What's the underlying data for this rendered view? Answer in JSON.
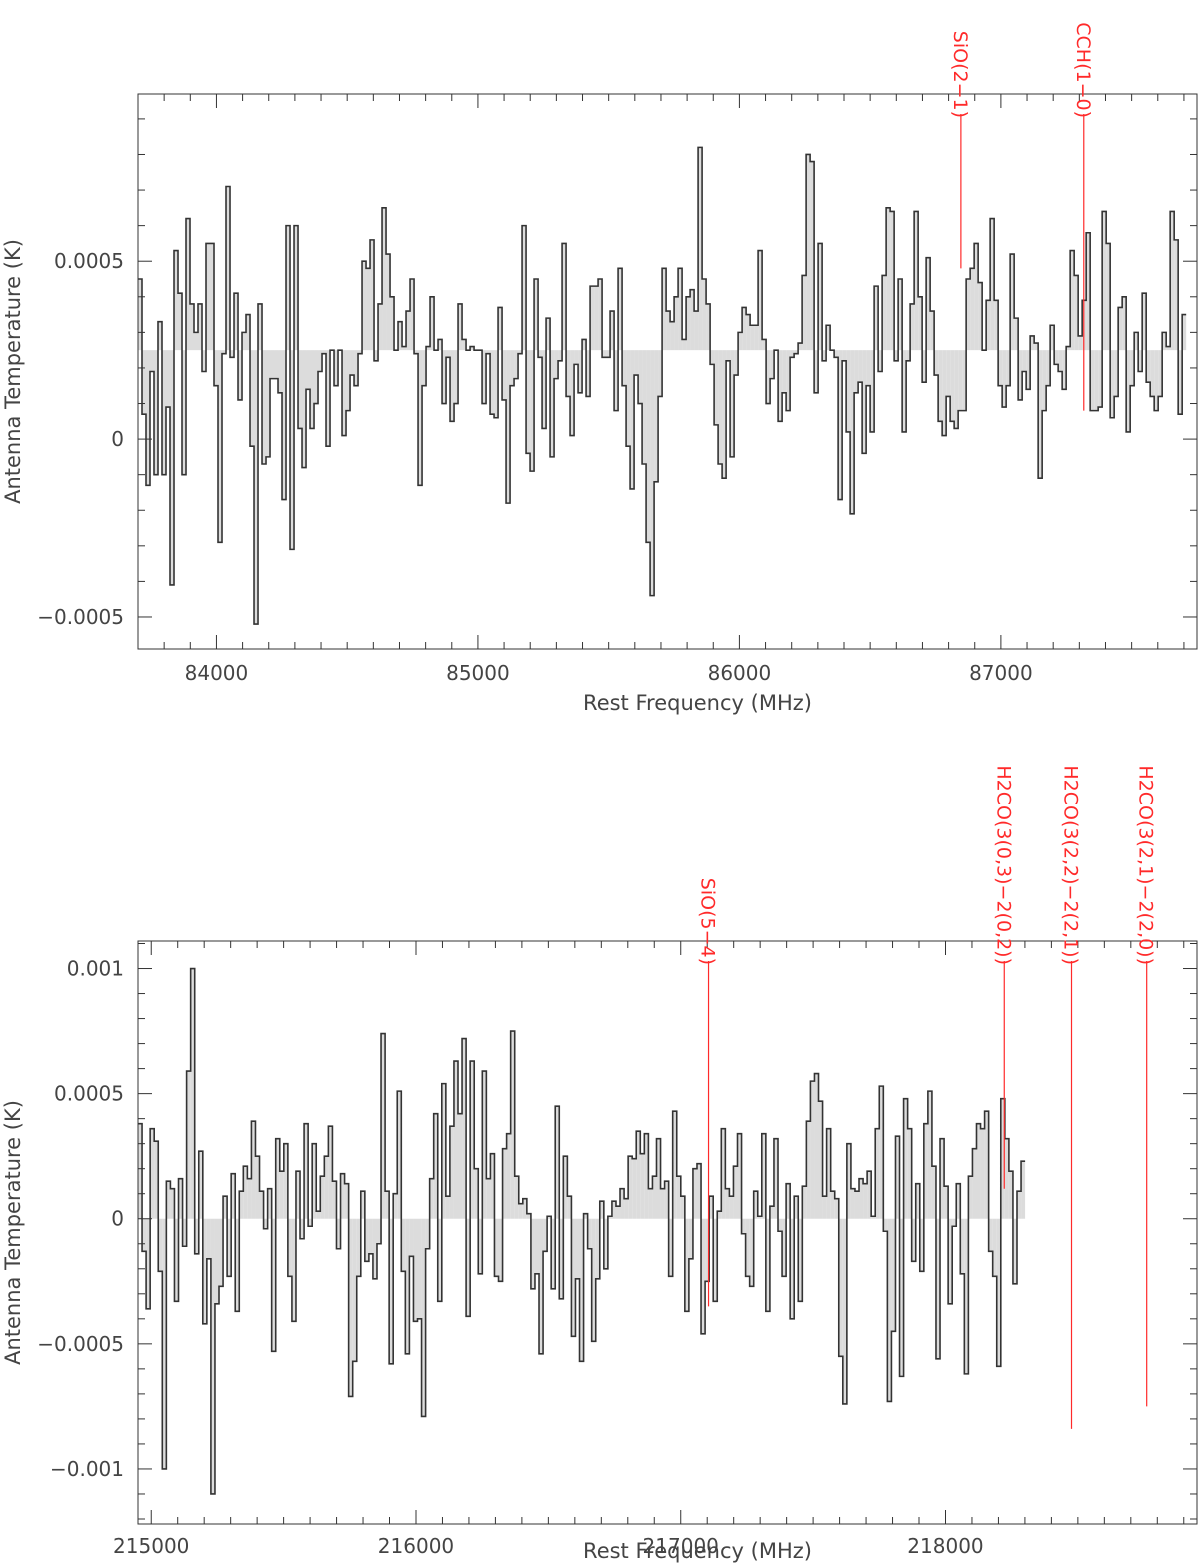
{
  "chart_data": [
    {
      "type": "step",
      "xlabel": "Rest Frequency (MHz)",
      "ylabel": "Antenna Temperature (K)",
      "xlim": [
        83700,
        87750
      ],
      "ylim": [
        -0.00059,
        0.00097
      ],
      "baseline": 0.00025,
      "x_ticks": [
        84000,
        85000,
        86000,
        87000
      ],
      "x_tick_labels": [
        "84000",
        "85000",
        "86000",
        "87000"
      ],
      "y_ticks": [
        -0.0005,
        0,
        0.0005
      ],
      "y_tick_labels": [
        "−0.0005",
        "0",
        "0.0005"
      ],
      "line_markers": [
        {
          "label": "SiO(2−1)",
          "freq": 86847,
          "level": 0.00048
        },
        {
          "label": "CCH(1−0)",
          "freq": 87317,
          "level": 8e-05
        }
      ],
      "x0": 83700,
      "dx": 15.3,
      "values": [
        0.00045,
        7e-05,
        -0.00013,
        0.00019,
        -0.0001,
        0.00033,
        -0.0001,
        9e-05,
        -0.00041,
        0.00053,
        0.00041,
        -0.0001,
        0.00062,
        0.00038,
        0.0003,
        0.00038,
        0.00019,
        0.00055,
        0.00055,
        0.00015,
        -0.00029,
        0.00024,
        0.00071,
        0.00023,
        0.00041,
        0.00011,
        0.0003,
        0.00035,
        -2e-05,
        -0.00052,
        0.00038,
        -7e-05,
        -5e-05,
        0.00017,
        0.00017,
        0.00013,
        -0.00017,
        0.0006,
        -0.00031,
        0.0006,
        3e-05,
        -8e-05,
        0.00014,
        3e-05,
        0.0001,
        0.00019,
        0.00024,
        -2e-05,
        0.00025,
        0.00015,
        0.00025,
        1e-05,
        8e-05,
        0.00018,
        0.00015,
        0.00024,
        0.0005,
        0.00048,
        0.00056,
        0.00022,
        0.00038,
        0.00065,
        0.00052,
        0.0004,
        0.00025,
        0.00033,
        0.00026,
        0.00036,
        0.00045,
        0.00024,
        -0.00013,
        0.00015,
        0.00026,
        0.0004,
        0.00025,
        0.00028,
        0.0001,
        0.00023,
        5e-05,
        0.0001,
        0.00038,
        0.00028,
        0.00025,
        0.00026,
        0.00025,
        0.00025,
        0.0001,
        0.00024,
        7e-05,
        6e-05,
        0.00037,
        0.00011,
        -0.00018,
        0.00015,
        0.00017,
        0.00024,
        0.0006,
        -4e-05,
        -9e-05,
        0.00045,
        0.00023,
        3e-05,
        0.00034,
        -5e-05,
        0.00017,
        0.00022,
        0.00055,
        0.00012,
        1e-05,
        0.00021,
        0.00013,
        0.00028,
        0.00012,
        0.00043,
        0.00043,
        0.00045,
        0.00023,
        0.00023,
        0.00036,
        8e-05,
        0.00048,
        0.00015,
        -2e-05,
        -0.00014,
        0.00018,
        0.0001,
        -7e-05,
        -0.00029,
        -0.00044,
        -0.00012,
        0.00012,
        0.00048,
        0.00036,
        0.00033,
        0.0004,
        0.00048,
        0.00028,
        0.0004,
        0.00042,
        0.00036,
        0.00082,
        0.00045,
        0.00038,
        0.00021,
        4e-05,
        -7e-05,
        -0.00011,
        0.00022,
        -5e-05,
        0.00018,
        0.0003,
        0.00037,
        0.00035,
        0.00032,
        0.00032,
        0.00053,
        0.00028,
        0.0001,
        0.00017,
        0.00025,
        5e-05,
        0.00013,
        8e-05,
        0.00023,
        0.00024,
        0.00027,
        0.00046,
        0.0008,
        0.00078,
        0.00013,
        0.00055,
        0.00022,
        0.00032,
        0.00025,
        0.00023,
        -0.00017,
        0.00022,
        2e-05,
        -0.00021,
        0.00013,
        0.00016,
        -4e-05,
        0.00015,
        2e-05,
        0.00043,
        0.00019,
        0.00046,
        0.00065,
        0.00064,
        0.00022,
        0.00045,
        2e-05,
        0.00022,
        0.00038,
        0.00064,
        0.0004,
        0.00016,
        0.00051,
        0.00036,
        0.00018,
        5e-05,
        1e-05,
        0.00012,
        5e-05,
        3e-05,
        8e-05,
        8e-05,
        0.00045,
        0.00048,
        0.00055,
        0.00044,
        0.00025,
        0.00039,
        0.00062,
        0.00039,
        0.00015,
        9e-05,
        0.00015,
        0.00052,
        0.00034,
        0.00011,
        0.00019,
        0.00014,
        0.00029,
        0.00027,
        -0.00011,
        8e-05,
        0.00015,
        0.00032,
        0.00021,
        0.00019,
        0.00014,
        0.00026,
        0.00053,
        0.00046,
        0.00029,
        0.00039,
        0.00058,
        8e-05,
        8e-05,
        9e-05,
        0.00064,
        0.00055,
        6e-05,
        0.00012,
        0.00037,
        0.0004,
        2e-05,
        0.00015,
        0.0003,
        0.00019,
        0.00041,
        0.00016,
        0.00012,
        8e-05,
        0.00012,
        0.0003,
        0.00026,
        0.00064,
        0.00056,
        7e-05,
        0.00035
      ]
    },
    {
      "type": "step",
      "xlabel": "Rest Frequency (MHz)",
      "ylabel": "Antenna Temperature (K)",
      "xlim": [
        214950,
        218950
      ],
      "ylim": [
        -0.00122,
        0.00111
      ],
      "baseline": 0.0,
      "x_ticks": [
        215000,
        216000,
        217000,
        218000
      ],
      "x_tick_labels": [
        "215000",
        "216000",
        "217000",
        "218000"
      ],
      "y_ticks": [
        -0.001,
        -0.0005,
        0,
        0.0005,
        0.001
      ],
      "y_tick_labels": [
        "−0.001",
        "−0.0005",
        "0",
        "0.0005",
        "0.001"
      ],
      "line_markers": [
        {
          "label": "SiO(5−4)",
          "freq": 217105,
          "level": -0.00035
        },
        {
          "label": "H2CO(3(0,3)−2(0,2))",
          "freq": 218222,
          "level": 0.00012
        },
        {
          "label": "H2CO(3(2,2)−2(2,1))",
          "freq": 218476,
          "level": -0.00084
        },
        {
          "label": "H2CO(3(2,1)−2(2,0))",
          "freq": 218760,
          "level": -0.00075
        }
      ],
      "x0": 214950,
      "dx": 15.3,
      "values": [
        0.00038,
        -0.00013,
        -0.00036,
        0.00036,
        0.00031,
        -0.00021,
        -0.001,
        0.00015,
        0.00012,
        -0.00033,
        0.00016,
        -0.00011,
        0.00059,
        0.001,
        -0.00014,
        0.00027,
        -0.00042,
        -0.00016,
        -0.0011,
        -0.00034,
        -0.00027,
        9e-05,
        -0.00023,
        0.00018,
        -0.00037,
        0.00011,
        0.00021,
        0.00016,
        0.00039,
        0.00025,
        0.00011,
        -4e-05,
        0.00012,
        -0.00053,
        0.00032,
        0.00019,
        0.0003,
        -0.00023,
        -0.00041,
        0.00019,
        -8e-05,
        0.00038,
        -3e-05,
        0.0003,
        3e-05,
        0.00017,
        0.00025,
        0.00037,
        0.00015,
        -0.00012,
        0.00018,
        0.00014,
        -0.00071,
        -0.00057,
        -0.00023,
        0.00011,
        -0.00017,
        -0.00014,
        -0.00024,
        -0.0001,
        0.00074,
        0.00011,
        -0.00058,
        0.0001,
        0.00051,
        -0.00021,
        -0.00054,
        -0.00015,
        -0.00041,
        -0.0004,
        -0.00079,
        -0.00012,
        0.00016,
        0.00042,
        -0.00033,
        0.00054,
        9e-05,
        0.00037,
        0.00063,
        0.00042,
        0.00072,
        -0.00039,
        0.00063,
        0.0002,
        -0.00022,
        0.00059,
        0.00016,
        0.00026,
        -0.00023,
        -0.00025,
        0.00028,
        0.00034,
        0.00075,
        0.00017,
        6e-05,
        8e-05,
        2e-05,
        -0.00028,
        -0.00022,
        -0.00054,
        -0.00013,
        1e-05,
        -0.00028,
        0.00045,
        -0.00032,
        0.00025,
        9e-05,
        -0.00047,
        -0.00024,
        -0.00057,
        2e-05,
        -0.00012,
        -0.00049,
        -0.00024,
        7e-05,
        -0.0002,
        1e-05,
        7e-05,
        5e-05,
        0.00012,
        8e-05,
        0.00025,
        0.00024,
        0.00035,
        0.00026,
        0.00034,
        0.00012,
        0.00017,
        0.00032,
        0.00012,
        0.00015,
        -0.00023,
        0.00043,
        0.00017,
        9e-05,
        -0.00037,
        -0.00016,
        0.0002,
        0.00022,
        -0.00046,
        -0.00025,
        9e-05,
        -0.00033,
        3e-05,
        0.00036,
        0.00012,
        9e-05,
        0.00021,
        0.00034,
        -6e-05,
        -0.00023,
        -0.00027,
        0.00011,
        1e-05,
        0.00034,
        -0.00037,
        5e-05,
        0.00032,
        -5e-05,
        -0.00023,
        0.00014,
        -0.0004,
        9e-05,
        -0.00033,
        0.00013,
        0.00039,
        0.00055,
        0.00058,
        0.00047,
        9e-05,
        0.00036,
        0.00011,
        8e-05,
        -0.00055,
        -0.00074,
        0.0003,
        0.00012,
        0.00011,
        0.00016,
        0.00014,
        0.00019,
        1e-05,
        0.00036,
        0.00053,
        -5e-05,
        -0.00073,
        -0.00045,
        0.00033,
        -0.00063,
        0.00048,
        0.00036,
        -0.00017,
        0.00014,
        -0.00021,
        0.00038,
        0.00051,
        0.00021,
        -0.00056,
        0.00032,
        0.00013,
        -0.00034,
        -3e-05,
        0.00014,
        -0.00022,
        -0.00062,
        0.00017,
        0.00028,
        0.00038,
        0.00036,
        0.00043,
        -0.00013,
        -0.00023,
        -0.00059,
        0.00048,
        0.00032,
        0.00019,
        -0.00026,
        0.00011,
        0.00023
      ]
    }
  ]
}
